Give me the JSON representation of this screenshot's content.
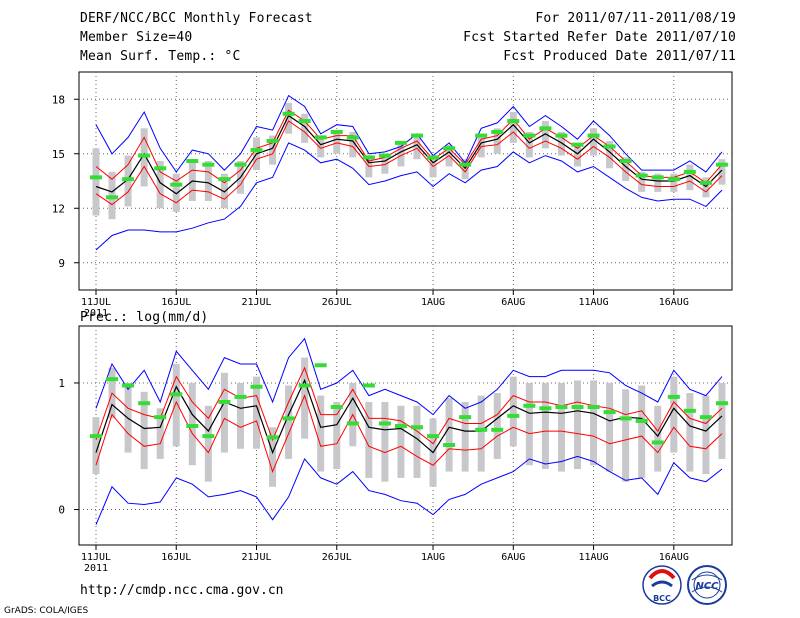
{
  "header": {
    "title": "DERF/NCC/BCC Monthly Forecast",
    "member_size": "Member Size=40",
    "for_period": "For 2011/07/11-2011/08/19",
    "fcst_started": "Fcst Started Refer Date 2011/07/10",
    "fcst_produced": "Fcst Produced Date 2011/07/11"
  },
  "footer": {
    "url": "http://cmdp.ncc.cma.gov.cn",
    "grads": "GrADS: COLA/IGES",
    "logo_bcc_text": "BCC",
    "logo_ncc_text": "NCC"
  },
  "colors": {
    "envelope": "#0000ff",
    "spread": "#ff0000",
    "mean": "#000000",
    "observed": "#33dd33",
    "box": "#c8c8cc",
    "grid": "#666666"
  },
  "chart_data": [
    {
      "type": "line",
      "title": "Mean Surf. Temp.: °C",
      "x": [
        "11JUL",
        "12JUL",
        "13JUL",
        "14JUL",
        "15JUL",
        "16JUL",
        "17JUL",
        "18JUL",
        "19JUL",
        "20JUL",
        "21JUL",
        "22JUL",
        "23JUL",
        "24JUL",
        "25JUL",
        "26JUL",
        "27JUL",
        "28JUL",
        "29JUL",
        "30JUL",
        "31JUL",
        "1AUG",
        "2AUG",
        "3AUG",
        "4AUG",
        "5AUG",
        "6AUG",
        "7AUG",
        "8AUG",
        "9AUG",
        "10AUG",
        "11AUG",
        "12AUG",
        "13AUG",
        "14AUG",
        "15AUG",
        "16AUG",
        "17AUG",
        "18AUG",
        "19AUG"
      ],
      "xticks": [
        "11JUL",
        "16JUL",
        "21JUL",
        "26JUL",
        "1AUG",
        "6AUG",
        "11AUG",
        "16AUG"
      ],
      "xtick_sub": "2011",
      "yticks": [
        9,
        12,
        15,
        18
      ],
      "ylim": [
        7.5,
        19.5
      ],
      "series": [
        {
          "name": "max",
          "values": [
            16.6,
            15.0,
            15.9,
            17.3,
            15.3,
            14.0,
            15.2,
            15.0,
            14.1,
            15.0,
            16.5,
            16.3,
            18.2,
            17.6,
            16.1,
            16.6,
            16.5,
            15.0,
            15.1,
            15.4,
            16.1,
            14.9,
            15.6,
            14.5,
            16.4,
            16.7,
            17.6,
            16.5,
            17.1,
            16.5,
            15.8,
            16.8,
            16.0,
            15.0,
            14.1,
            14.1,
            14.1,
            14.6,
            14.0,
            15.1
          ]
        },
        {
          "name": "upper",
          "values": [
            14.3,
            13.6,
            14.4,
            15.9,
            14.0,
            13.5,
            14.1,
            14.0,
            13.4,
            14.1,
            15.3,
            15.6,
            17.4,
            16.8,
            15.8,
            16.0,
            16.0,
            14.6,
            14.8,
            15.3,
            15.7,
            14.7,
            15.3,
            14.4,
            15.8,
            16.0,
            16.9,
            15.8,
            16.4,
            15.9,
            15.3,
            16.0,
            15.4,
            14.6,
            13.8,
            13.7,
            13.7,
            14.0,
            13.4,
            14.4
          ]
        },
        {
          "name": "mean",
          "values": [
            13.2,
            12.9,
            13.6,
            15.0,
            13.4,
            12.8,
            13.5,
            13.4,
            12.9,
            13.7,
            15.0,
            15.3,
            17.1,
            16.5,
            15.5,
            15.8,
            15.7,
            14.5,
            14.6,
            15.1,
            15.5,
            14.5,
            15.1,
            14.2,
            15.6,
            15.8,
            16.6,
            15.6,
            16.1,
            15.6,
            15.0,
            15.8,
            15.1,
            14.3,
            13.6,
            13.5,
            13.5,
            13.8,
            13.2,
            14.1
          ]
        },
        {
          "name": "lower",
          "values": [
            12.8,
            12.2,
            12.9,
            14.3,
            12.8,
            12.3,
            13.0,
            12.9,
            12.5,
            13.3,
            14.7,
            15.0,
            16.8,
            16.2,
            15.3,
            15.6,
            15.4,
            14.3,
            14.4,
            14.9,
            15.3,
            14.3,
            14.9,
            14.0,
            15.4,
            15.5,
            16.2,
            15.3,
            15.7,
            15.3,
            14.7,
            15.4,
            14.8,
            14.0,
            13.3,
            13.2,
            13.2,
            13.5,
            12.9,
            13.8
          ]
        },
        {
          "name": "min",
          "values": [
            9.7,
            10.5,
            10.8,
            10.8,
            10.7,
            10.7,
            10.9,
            11.2,
            11.4,
            12.1,
            13.4,
            13.7,
            15.6,
            15.2,
            14.5,
            14.7,
            14.2,
            13.3,
            13.5,
            13.8,
            14.0,
            13.2,
            13.9,
            13.4,
            14.1,
            14.3,
            15.1,
            14.5,
            14.9,
            14.6,
            14.0,
            14.3,
            13.7,
            13.1,
            12.6,
            12.4,
            12.5,
            12.5,
            12.1,
            13.0
          ]
        },
        {
          "name": "observed",
          "values": [
            13.7,
            12.6,
            13.6,
            14.9,
            14.2,
            13.3,
            14.6,
            14.4,
            13.6,
            14.4,
            15.2,
            15.7,
            17.2,
            16.8,
            15.9,
            16.2,
            15.9,
            14.8,
            14.9,
            15.6,
            16.0,
            14.8,
            15.3,
            14.4,
            16.0,
            16.2,
            16.8,
            16.0,
            16.4,
            16.0,
            15.5,
            16.0,
            15.4,
            14.6,
            13.8,
            13.7,
            13.6,
            14.0,
            13.4,
            14.4
          ]
        }
      ],
      "boxes": {
        "low": [
          11.6,
          11.4,
          12.1,
          13.2,
          12.0,
          11.8,
          12.4,
          12.4,
          12.0,
          12.8,
          14.1,
          14.4,
          16.1,
          15.6,
          14.8,
          15.0,
          14.8,
          13.7,
          13.9,
          14.3,
          14.7,
          13.7,
          14.3,
          13.6,
          14.8,
          15.0,
          15.6,
          14.8,
          15.3,
          14.9,
          14.3,
          14.9,
          14.2,
          13.5,
          12.9,
          12.9,
          12.9,
          13.0,
          12.6,
          13.3
        ],
        "high": [
          15.3,
          14.0,
          14.9,
          16.4,
          14.6,
          13.9,
          14.7,
          14.6,
          13.9,
          14.6,
          15.9,
          16.0,
          17.8,
          17.2,
          16.0,
          16.3,
          16.2,
          14.9,
          15.0,
          15.5,
          16.0,
          14.9,
          15.5,
          14.7,
          16.1,
          16.4,
          17.3,
          16.2,
          16.8,
          16.2,
          15.6,
          16.4,
          15.7,
          14.8,
          14.0,
          13.9,
          13.9,
          14.4,
          13.7,
          14.7
        ]
      }
    },
    {
      "type": "line",
      "title": "Prec.: log(mm/d)",
      "x": [
        "11JUL",
        "12JUL",
        "13JUL",
        "14JUL",
        "15JUL",
        "16JUL",
        "17JUL",
        "18JUL",
        "19JUL",
        "20JUL",
        "21JUL",
        "22JUL",
        "23JUL",
        "24JUL",
        "25JUL",
        "26JUL",
        "27JUL",
        "28JUL",
        "29JUL",
        "30JUL",
        "31JUL",
        "1AUG",
        "2AUG",
        "3AUG",
        "4AUG",
        "5AUG",
        "6AUG",
        "7AUG",
        "8AUG",
        "9AUG",
        "10AUG",
        "11AUG",
        "12AUG",
        "13AUG",
        "14AUG",
        "15AUG",
        "16AUG",
        "17AUG",
        "18AUG",
        "19AUG"
      ],
      "xticks": [
        "11JUL",
        "16JUL",
        "21JUL",
        "26JUL",
        "1AUG",
        "6AUG",
        "11AUG",
        "16AUG"
      ],
      "xtick_sub": "2011",
      "yticks": [
        0,
        1
      ],
      "ylim": [
        -0.28,
        1.45
      ],
      "series": [
        {
          "name": "max",
          "values": [
            0.8,
            1.15,
            0.95,
            1.1,
            0.85,
            1.25,
            1.1,
            0.95,
            1.2,
            1.15,
            1.15,
            0.85,
            1.2,
            1.35,
            0.95,
            1.0,
            1.1,
            0.9,
            0.95,
            0.9,
            0.85,
            0.75,
            0.9,
            0.8,
            0.85,
            0.95,
            1.1,
            1.05,
            1.05,
            1.1,
            1.1,
            1.1,
            1.08,
            0.98,
            0.92,
            0.85,
            1.1,
            0.95,
            0.9,
            1.05
          ]
        },
        {
          "name": "upper",
          "values": [
            0.55,
            0.92,
            0.8,
            0.75,
            0.72,
            1.05,
            0.85,
            0.72,
            0.95,
            0.88,
            0.9,
            0.55,
            0.85,
            1.12,
            0.75,
            0.75,
            0.95,
            0.72,
            0.72,
            0.7,
            0.62,
            0.52,
            0.72,
            0.68,
            0.68,
            0.75,
            0.9,
            0.85,
            0.85,
            0.82,
            0.85,
            0.82,
            0.8,
            0.75,
            0.78,
            0.62,
            0.85,
            0.72,
            0.68,
            0.8
          ]
        },
        {
          "name": "mean",
          "values": [
            0.45,
            0.83,
            0.72,
            0.64,
            0.65,
            0.97,
            0.75,
            0.62,
            0.85,
            0.8,
            0.82,
            0.45,
            0.75,
            1.02,
            0.65,
            0.67,
            0.88,
            0.65,
            0.63,
            0.64,
            0.56,
            0.45,
            0.65,
            0.62,
            0.62,
            0.72,
            0.82,
            0.76,
            0.77,
            0.76,
            0.78,
            0.76,
            0.7,
            0.73,
            0.72,
            0.58,
            0.8,
            0.66,
            0.62,
            0.74
          ]
        },
        {
          "name": "lower",
          "values": [
            0.35,
            0.75,
            0.6,
            0.5,
            0.52,
            0.85,
            0.6,
            0.45,
            0.72,
            0.65,
            0.7,
            0.3,
            0.6,
            0.9,
            0.5,
            0.52,
            0.75,
            0.5,
            0.45,
            0.5,
            0.42,
            0.35,
            0.48,
            0.47,
            0.48,
            0.58,
            0.65,
            0.6,
            0.62,
            0.62,
            0.6,
            0.58,
            0.52,
            0.55,
            0.58,
            0.45,
            0.65,
            0.5,
            0.48,
            0.6
          ]
        },
        {
          "name": "min",
          "values": [
            -0.12,
            0.18,
            0.05,
            0.04,
            0.06,
            0.25,
            0.2,
            0.1,
            0.12,
            0.15,
            0.1,
            -0.08,
            0.1,
            0.4,
            0.25,
            0.2,
            0.3,
            0.15,
            0.12,
            0.07,
            0.05,
            -0.04,
            0.08,
            0.12,
            0.2,
            0.25,
            0.3,
            0.4,
            0.36,
            0.38,
            0.42,
            0.38,
            0.3,
            0.23,
            0.25,
            0.12,
            0.37,
            0.25,
            0.22,
            0.32
          ]
        },
        {
          "name": "observed",
          "values": [
            0.58,
            1.03,
            0.98,
            0.84,
            0.73,
            0.91,
            0.66,
            0.58,
            0.85,
            0.89,
            0.97,
            0.57,
            0.72,
            0.98,
            1.14,
            0.81,
            0.68,
            0.98,
            0.68,
            0.66,
            0.65,
            0.58,
            0.51,
            0.73,
            0.63,
            0.63,
            0.74,
            0.82,
            0.8,
            0.81,
            0.81,
            0.81,
            0.77,
            0.72,
            0.7,
            0.53,
            0.89,
            0.78,
            0.73,
            0.84
          ]
        }
      ],
      "boxes": {
        "low": [
          0.28,
          0.72,
          0.45,
          0.32,
          0.4,
          0.5,
          0.35,
          0.22,
          0.45,
          0.48,
          0.48,
          0.18,
          0.4,
          0.56,
          0.3,
          0.32,
          0.5,
          0.25,
          0.22,
          0.25,
          0.25,
          0.18,
          0.3,
          0.3,
          0.3,
          0.4,
          0.5,
          0.35,
          0.32,
          0.3,
          0.32,
          0.35,
          0.3,
          0.22,
          0.25,
          0.3,
          0.45,
          0.3,
          0.28,
          0.4
        ],
        "high": [
          0.73,
          1.12,
          1.0,
          0.93,
          0.8,
          1.15,
          1.0,
          0.82,
          1.08,
          1.0,
          1.05,
          0.65,
          0.98,
          1.2,
          0.9,
          0.85,
          1.0,
          0.85,
          0.85,
          0.82,
          0.82,
          0.72,
          0.88,
          0.85,
          0.9,
          0.92,
          1.05,
          1.0,
          1.0,
          1.0,
          1.02,
          1.02,
          1.0,
          0.95,
          0.98,
          0.82,
          1.05,
          0.92,
          0.9,
          1.0
        ]
      }
    }
  ]
}
